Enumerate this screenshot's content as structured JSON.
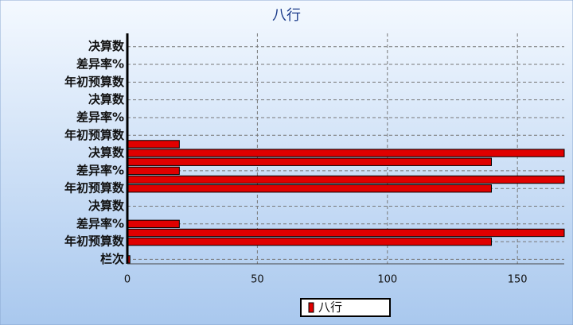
{
  "chart_data": {
    "type": "bar",
    "orientation": "horizontal",
    "title": "八行",
    "categories": [
      "栏次",
      null,
      "年初预算数",
      null,
      "差异率%",
      null,
      "决算数",
      null,
      "年初预算数",
      null,
      "差异率%",
      null,
      "决算数",
      null,
      "年初预算数",
      null,
      "差异率%",
      null,
      "决算数",
      null,
      "年初预算数",
      null,
      "差异率%",
      null,
      "决算数",
      null
    ],
    "series": [
      {
        "name": "八行",
        "color": "#e00000",
        "values": [
          1,
          null,
          140,
          168,
          20,
          null,
          null,
          null,
          140,
          168,
          20,
          140,
          168,
          20,
          null,
          null,
          null,
          null,
          null,
          null,
          null,
          null,
          null,
          null,
          null,
          null
        ]
      }
    ],
    "xlim": [
      0,
      168
    ],
    "xticks": [
      0,
      50,
      100,
      150
    ],
    "grid": true,
    "legend": "bottom"
  }
}
